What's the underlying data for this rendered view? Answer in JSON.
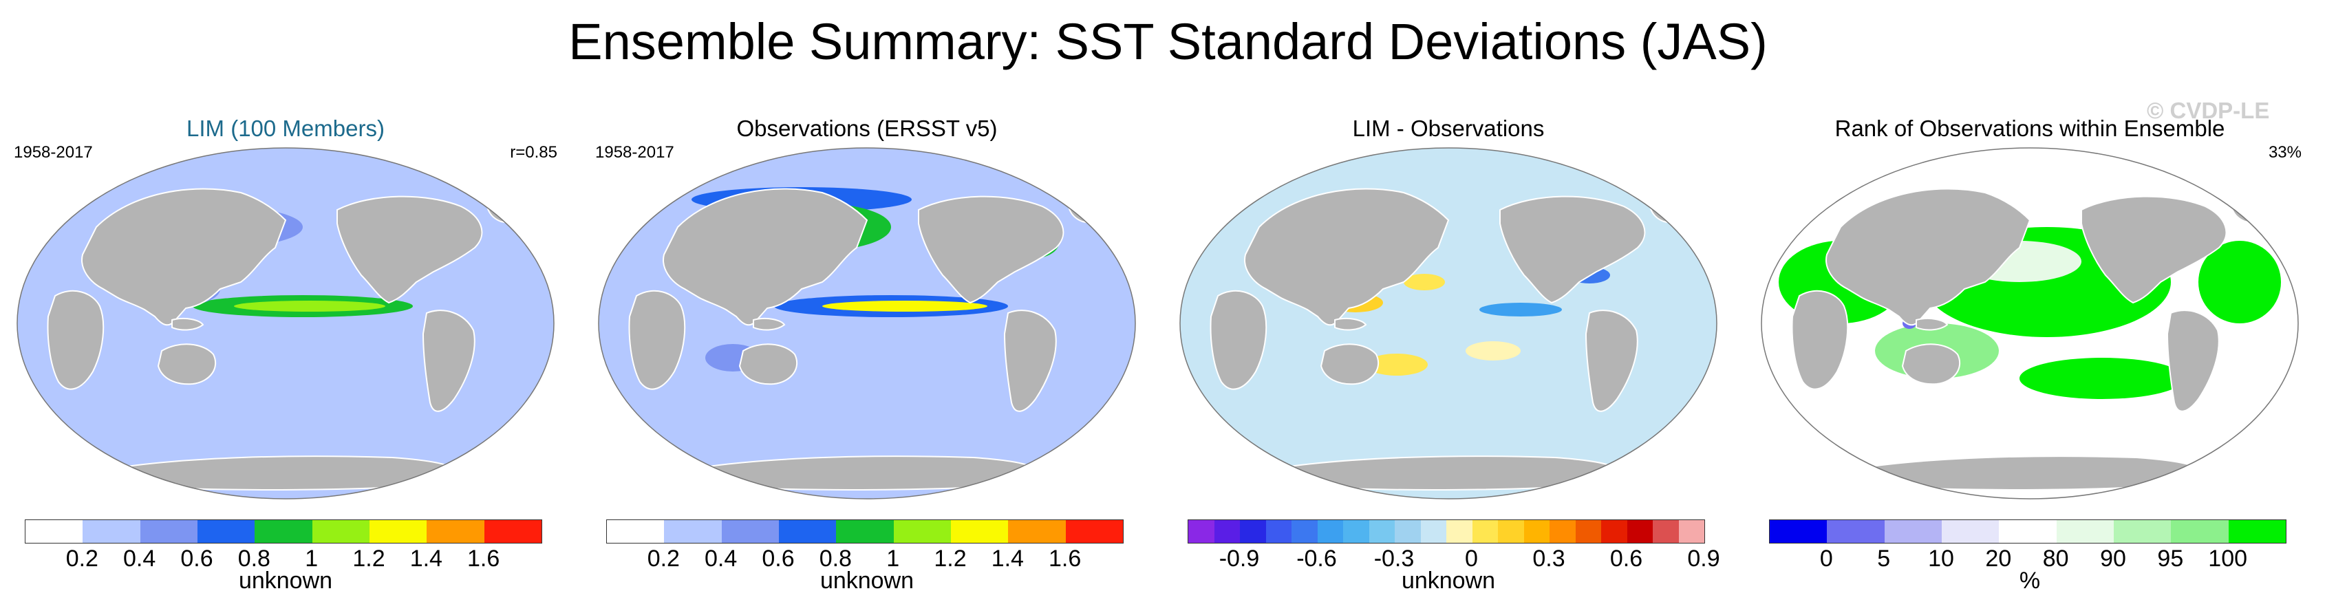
{
  "page": {
    "title": "Ensemble Summary: SST Standard Deviations (JAS)",
    "watermark": "© CVDP-LE"
  },
  "panels": [
    {
      "title": "LIM (100 Members)",
      "title_color": "#1c6a8c",
      "left_label": "1958-2017",
      "right_label": "r=0.85",
      "colorbar": {
        "colors": [
          "#ffffff",
          "#b4c8ff",
          "#7d95f2",
          "#1e64f0",
          "#14c030",
          "#96f014",
          "#fafa00",
          "#ff9900",
          "#ff1e0a"
        ],
        "ticks": [
          "0.2",
          "0.4",
          "0.6",
          "0.8",
          "1",
          "1.2",
          "1.4",
          "1.6"
        ],
        "unit": "unknown"
      }
    },
    {
      "title": "Observations (ERSST v5)",
      "title_color": "#000000",
      "left_label": "1958-2017",
      "right_label": "",
      "colorbar": {
        "colors": [
          "#ffffff",
          "#b4c8ff",
          "#7d95f2",
          "#1e64f0",
          "#14c030",
          "#96f014",
          "#fafa00",
          "#ff9900",
          "#ff1e0a"
        ],
        "ticks": [
          "0.2",
          "0.4",
          "0.6",
          "0.8",
          "1",
          "1.2",
          "1.4",
          "1.6"
        ],
        "unit": "unknown"
      }
    },
    {
      "title": "LIM - Observations",
      "title_color": "#000000",
      "left_label": "",
      "right_label": "",
      "colorbar": {
        "colors": [
          "#8a28e6",
          "#5a1ee6",
          "#2828e6",
          "#3c5af0",
          "#3c78f0",
          "#3ca0f0",
          "#50b4f0",
          "#78c8f0",
          "#a0d2f0",
          "#c8e6f5",
          "#fff5b4",
          "#ffe650",
          "#ffd228",
          "#ffb400",
          "#ff8c00",
          "#f05a00",
          "#e61e00",
          "#c80000",
          "#dc5050",
          "#f5aaaa"
        ],
        "ticks": [
          "-0.9",
          "-0.6",
          "-0.3",
          "0",
          "0.3",
          "0.6",
          "0.9"
        ],
        "unit": "unknown"
      }
    },
    {
      "title": "Rank of Observations within Ensemble",
      "title_color": "#000000",
      "left_label": "",
      "right_label": "33%",
      "colorbar": {
        "colors": [
          "#0000f0",
          "#6e6ef0",
          "#b4b4f5",
          "#e6e6fa",
          "#ffffff",
          "#e6fae6",
          "#b4f5b4",
          "#8cf08c",
          "#00f000"
        ],
        "ticks": [
          "0",
          "5",
          "10",
          "20",
          "80",
          "90",
          "95",
          "100"
        ],
        "unit": "%"
      }
    }
  ],
  "map_colors": {
    "land": "#b4b4b4",
    "ocean_a": "#b4c8ff",
    "ocean_b": "#b4c8ff",
    "ocean_c": "#c8e6f5",
    "ocean_d": "#00f000"
  }
}
